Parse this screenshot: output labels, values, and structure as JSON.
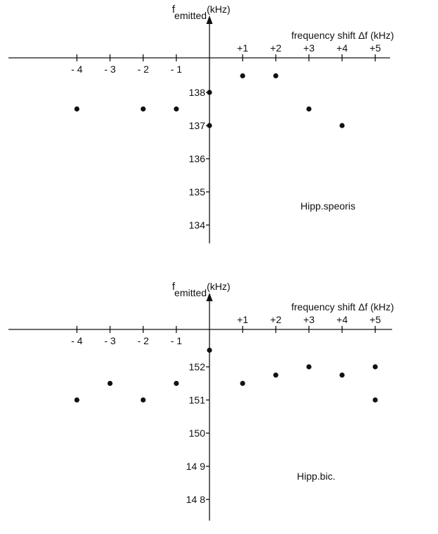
{
  "chart_data": [
    {
      "type": "scatter",
      "ylabel_main": "f",
      "ylabel_sub": "emitted",
      "ylabel_unit": "(kHz)",
      "xlabel": "frequency shift Δf (kHz)",
      "annotation": "Hipp.speoris",
      "x_ticks": [
        -4,
        -3,
        -2,
        -1,
        1,
        2,
        3,
        4,
        5
      ],
      "x_tick_labels": [
        "- 4",
        "- 3",
        "- 2",
        "- 1",
        "+1",
        "+2",
        "+3",
        "+4",
        "+5"
      ],
      "y_ticks": [
        134,
        135,
        136,
        137,
        138
      ],
      "y_tick_labels": [
        "134",
        "135",
        "136",
        "137",
        "138"
      ],
      "ylim": [
        133.5,
        139.75
      ],
      "xlim": [
        -6.2,
        5.5
      ],
      "points": [
        {
          "x": -4,
          "y": 137.5
        },
        {
          "x": -2,
          "y": 137.5
        },
        {
          "x": -1,
          "y": 137.5
        },
        {
          "x": 0,
          "y": 138
        },
        {
          "x": 0,
          "y": 137
        },
        {
          "x": 1,
          "y": 138.5
        },
        {
          "x": 2,
          "y": 138.5
        },
        {
          "x": 3,
          "y": 137.5
        },
        {
          "x": 4,
          "y": 137
        }
      ]
    },
    {
      "type": "scatter",
      "ylabel_main": "f",
      "ylabel_sub": "emitted",
      "ylabel_unit": "(kHz)",
      "xlabel": "frequency shift Δf (kHz)",
      "annotation": "Hipp.bic.",
      "x_ticks": [
        -4,
        -3,
        -2,
        -1,
        1,
        2,
        3,
        4,
        5
      ],
      "x_tick_labels": [
        "- 4",
        "- 3",
        "- 2",
        "- 1",
        "+1",
        "+2",
        "+3",
        "+4",
        "+5"
      ],
      "y_ticks": [
        148,
        149,
        150,
        151,
        152
      ],
      "y_tick_labels": [
        "14 8",
        "14 9",
        "150",
        "151",
        "152"
      ],
      "ylim": [
        147.5,
        153.75
      ],
      "xlim": [
        -6.2,
        5.5
      ],
      "points": [
        {
          "x": -4,
          "y": 151
        },
        {
          "x": -3,
          "y": 151.5
        },
        {
          "x": -2,
          "y": 151
        },
        {
          "x": -1,
          "y": 151.5
        },
        {
          "x": 0,
          "y": 152.5
        },
        {
          "x": 1,
          "y": 151.5
        },
        {
          "x": 2,
          "y": 151.75
        },
        {
          "x": 3,
          "y": 152
        },
        {
          "x": 4,
          "y": 151.75
        },
        {
          "x": 5,
          "y": 152
        },
        {
          "x": 5,
          "y": 151
        }
      ]
    }
  ]
}
